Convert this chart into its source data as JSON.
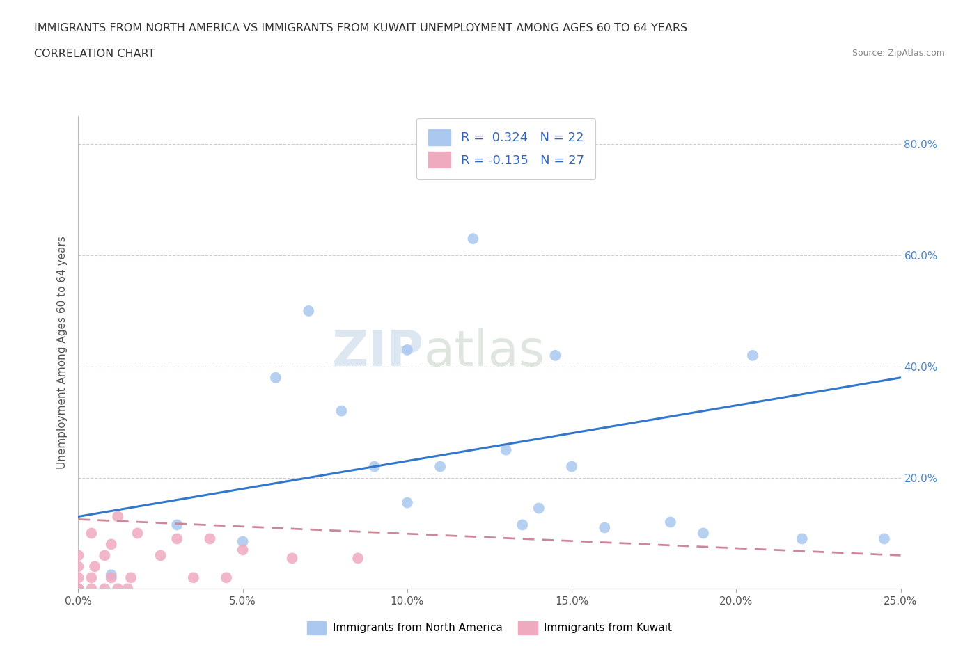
{
  "title_line1": "IMMIGRANTS FROM NORTH AMERICA VS IMMIGRANTS FROM KUWAIT UNEMPLOYMENT AMONG AGES 60 TO 64 YEARS",
  "title_line2": "CORRELATION CHART",
  "source_text": "Source: ZipAtlas.com",
  "ylabel": "Unemployment Among Ages 60 to 64 years",
  "xlim": [
    0.0,
    0.25
  ],
  "ylim": [
    0.0,
    0.85
  ],
  "xticks": [
    0.0,
    0.05,
    0.1,
    0.15,
    0.2,
    0.25
  ],
  "yticks": [
    0.0,
    0.2,
    0.4,
    0.6,
    0.8
  ],
  "xtick_labels": [
    "0.0%",
    "5.0%",
    "10.0%",
    "15.0%",
    "20.0%",
    "25.0%"
  ],
  "right_ytick_labels": [
    "20.0%",
    "40.0%",
    "60.0%",
    "80.0%"
  ],
  "R_blue": 0.324,
  "N_blue": 22,
  "R_pink": -0.135,
  "N_pink": 27,
  "blue_color": "#aac8f0",
  "pink_color": "#f0aac0",
  "blue_line_color": "#3377cc",
  "pink_line_color": "#cc8899",
  "legend_label_blue": "Immigrants from North America",
  "legend_label_pink": "Immigrants from Kuwait",
  "watermark_zip": "ZIP",
  "watermark_atlas": "atlas",
  "blue_scatter_x": [
    0.01,
    0.03,
    0.05,
    0.06,
    0.07,
    0.08,
    0.09,
    0.1,
    0.1,
    0.11,
    0.12,
    0.13,
    0.135,
    0.14,
    0.145,
    0.15,
    0.16,
    0.18,
    0.19,
    0.205,
    0.22,
    0.245
  ],
  "blue_scatter_y": [
    0.025,
    0.115,
    0.085,
    0.38,
    0.5,
    0.32,
    0.22,
    0.155,
    0.43,
    0.22,
    0.63,
    0.25,
    0.115,
    0.145,
    0.42,
    0.22,
    0.11,
    0.12,
    0.1,
    0.42,
    0.09,
    0.09
  ],
  "pink_scatter_x": [
    0.0,
    0.0,
    0.0,
    0.0,
    0.0,
    0.0,
    0.004,
    0.004,
    0.004,
    0.005,
    0.008,
    0.008,
    0.01,
    0.01,
    0.012,
    0.012,
    0.015,
    0.016,
    0.018,
    0.025,
    0.03,
    0.035,
    0.04,
    0.045,
    0.05,
    0.065,
    0.085
  ],
  "pink_scatter_y": [
    0.0,
    0.0,
    0.0,
    0.02,
    0.04,
    0.06,
    0.0,
    0.02,
    0.1,
    0.04,
    0.0,
    0.06,
    0.02,
    0.08,
    0.0,
    0.13,
    0.0,
    0.02,
    0.1,
    0.06,
    0.09,
    0.02,
    0.09,
    0.02,
    0.07,
    0.055,
    0.055
  ],
  "blue_trend_x0": 0.0,
  "blue_trend_y0": 0.13,
  "blue_trend_x1": 0.25,
  "blue_trend_y1": 0.38,
  "pink_trend_x0": 0.0,
  "pink_trend_y0": 0.125,
  "pink_trend_x1": 0.25,
  "pink_trend_y1": 0.06
}
